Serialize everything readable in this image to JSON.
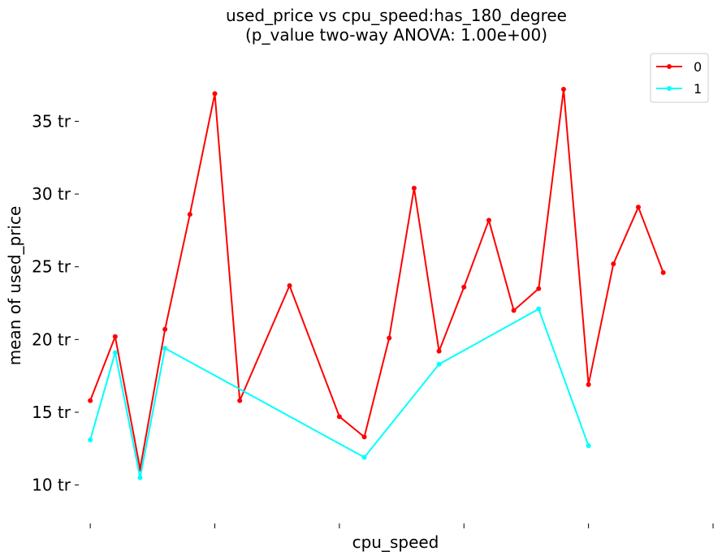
{
  "chart_data": {
    "type": "line",
    "title_line1": "used_price vs cpu_speed:has_180_degree",
    "title_line2": "(p_value two-way ANOVA: 1.00e+00)",
    "xlabel": "cpu_speed",
    "ylabel": "mean of used_price",
    "ylim": [
      7.8,
      39.6
    ],
    "xlim": [
      -0.2,
      25.0
    ],
    "yticks": [
      10,
      15,
      20,
      25,
      30,
      35
    ],
    "ytick_labels": [
      "10 tr",
      "15 tr",
      "20 tr",
      "25 tr",
      "30 tr",
      "35 tr"
    ],
    "xticks": [
      0,
      5,
      10,
      15,
      20,
      25
    ],
    "grid": false,
    "legend_position": "top-right",
    "series": [
      {
        "name": "0",
        "color": "#ff0000",
        "x": [
          0,
          1,
          2,
          3,
          4,
          5,
          6,
          8,
          10,
          11,
          12,
          13,
          14,
          15,
          16,
          17,
          18,
          19,
          20,
          21,
          22,
          23
        ],
        "values": [
          15.8,
          20.2,
          11.1,
          20.7,
          28.6,
          36.9,
          15.8,
          23.7,
          14.7,
          13.3,
          20.1,
          30.4,
          19.2,
          23.6,
          28.2,
          22.0,
          23.5,
          37.2,
          16.9,
          25.2,
          29.1,
          24.6
        ]
      },
      {
        "name": "1",
        "color": "#00ffff",
        "x": [
          0,
          1,
          2,
          3,
          11,
          14,
          18,
          20
        ],
        "values": [
          13.1,
          19.1,
          10.5,
          19.4,
          11.9,
          18.3,
          22.1,
          12.7
        ]
      }
    ]
  }
}
